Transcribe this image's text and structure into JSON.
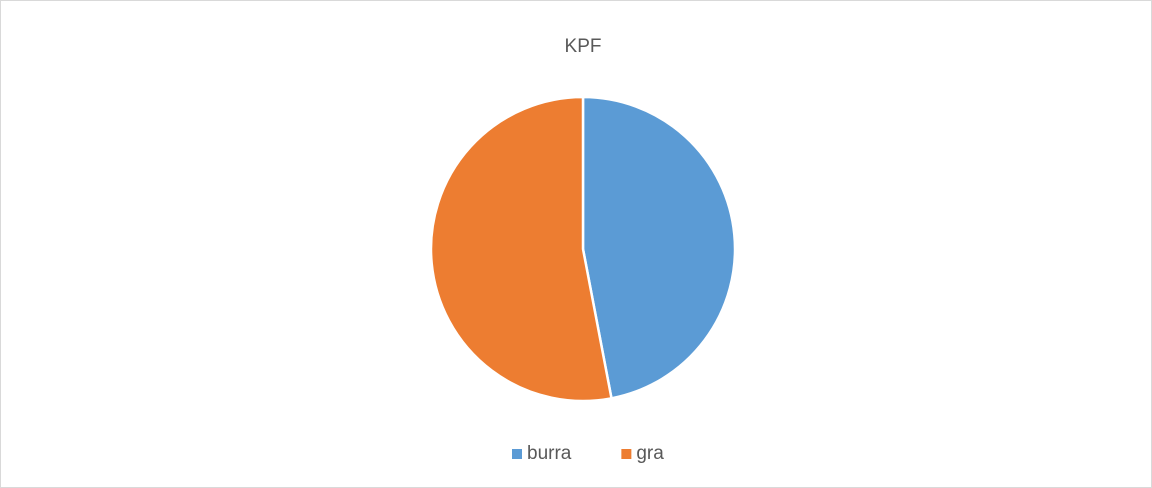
{
  "chart_data": {
    "type": "pie",
    "title": "KPF",
    "categories": [
      "burra",
      "gra"
    ],
    "values": [
      47,
      53
    ],
    "colors": [
      "#5b9bd5",
      "#ed7d31"
    ],
    "legend": "bottom"
  }
}
